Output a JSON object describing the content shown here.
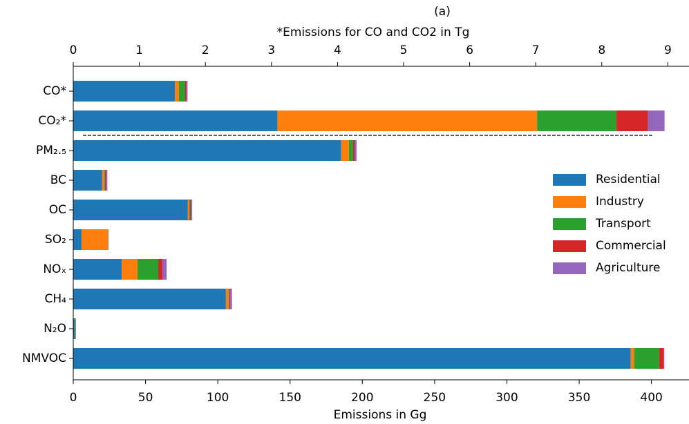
{
  "chart_data": {
    "type": "barh_stacked",
    "title": "(a)",
    "x2label": "*Emissions for CO and CO2 in Tg",
    "xlabel": "Emissions in Gg",
    "categories": [
      "CO*",
      "CO₂*",
      "PM₂.₅",
      "BC",
      "OC",
      "SO₂",
      "NOₓ",
      "CH₄",
      "N₂O",
      "NMVOC"
    ],
    "category_axis": [
      "x2",
      "x2",
      "x",
      "x",
      "x",
      "x",
      "x",
      "x",
      "x",
      "x"
    ],
    "series": [
      {
        "name": "Residential",
        "color": "#1f77b4",
        "values": [
          1.54,
          3.09,
          185.4,
          20,
          79.3,
          5.7,
          33.5,
          105.6,
          1,
          385.7
        ]
      },
      {
        "name": "Industry",
        "color": "#ff7f0e",
        "values": [
          0.06,
          3.93,
          5.3,
          1.4,
          1,
          18.2,
          11,
          1.9,
          0.1,
          2.4
        ]
      },
      {
        "name": "Transport",
        "color": "#2ca02c",
        "values": [
          0.09,
          1.2,
          2.9,
          0.5,
          0.5,
          0.2,
          14.3,
          0.3,
          0.5,
          17.2
        ]
      },
      {
        "name": "Commercial",
        "color": "#d62728",
        "values": [
          0.02,
          0.48,
          1,
          0.9,
          0.5,
          0.2,
          2.9,
          0.5,
          0.1,
          3.3
        ]
      },
      {
        "name": "Agriculture",
        "color": "#9467bd",
        "values": [
          0.02,
          0.25,
          1.4,
          0.8,
          1,
          0,
          2.9,
          1.5,
          0.2,
          0.3
        ]
      }
    ],
    "xlim": [
      0,
      426
    ],
    "xticks": [
      0,
      50,
      100,
      150,
      200,
      250,
      300,
      350,
      400
    ],
    "x2lim": [
      0,
      9.32
    ],
    "x2ticks": [
      0,
      1,
      2,
      3,
      4,
      5,
      6,
      7,
      8,
      9
    ],
    "legend": "right"
  }
}
